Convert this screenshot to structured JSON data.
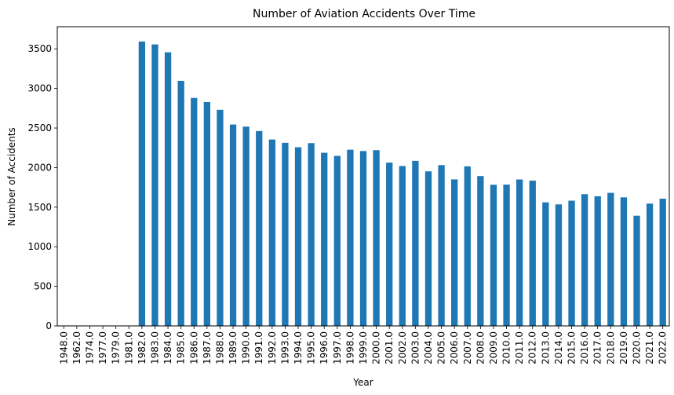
{
  "chart_data": {
    "type": "bar",
    "title": "Number of Aviation Accidents Over Time",
    "xlabel": "Year",
    "ylabel": "Number of Accidents",
    "ylim": [
      0,
      3780
    ],
    "yticks": [
      0,
      500,
      1000,
      1500,
      2000,
      2500,
      3000,
      3500
    ],
    "grid": false,
    "legend": "none",
    "bar_color": "#1f77b4",
    "categories": [
      "1948.0",
      "1962.0",
      "1974.0",
      "1977.0",
      "1979.0",
      "1981.0",
      "1982.0",
      "1983.0",
      "1984.0",
      "1985.0",
      "1986.0",
      "1987.0",
      "1988.0",
      "1989.0",
      "1990.0",
      "1991.0",
      "1992.0",
      "1993.0",
      "1994.0",
      "1995.0",
      "1996.0",
      "1997.0",
      "1998.0",
      "1999.0",
      "2000.0",
      "2001.0",
      "2002.0",
      "2003.0",
      "2004.0",
      "2005.0",
      "2006.0",
      "2007.0",
      "2008.0",
      "2009.0",
      "2010.0",
      "2011.0",
      "2012.0",
      "2013.0",
      "2014.0",
      "2015.0",
      "2016.0",
      "2017.0",
      "2018.0",
      "2019.0",
      "2020.0",
      "2021.0",
      "2022.0"
    ],
    "values": [
      1,
      1,
      1,
      1,
      2,
      1,
      3593,
      3556,
      3457,
      3096,
      2880,
      2828,
      2730,
      2544,
      2518,
      2462,
      2355,
      2313,
      2257,
      2309,
      2187,
      2148,
      2226,
      2209,
      2220,
      2063,
      2020,
      2085,
      1952,
      2031,
      1851,
      2016,
      1893,
      1783,
      1785,
      1850,
      1835,
      1561,
      1535,
      1582,
      1664,
      1638,
      1681,
      1624,
      1392,
      1545,
      1607
    ]
  }
}
